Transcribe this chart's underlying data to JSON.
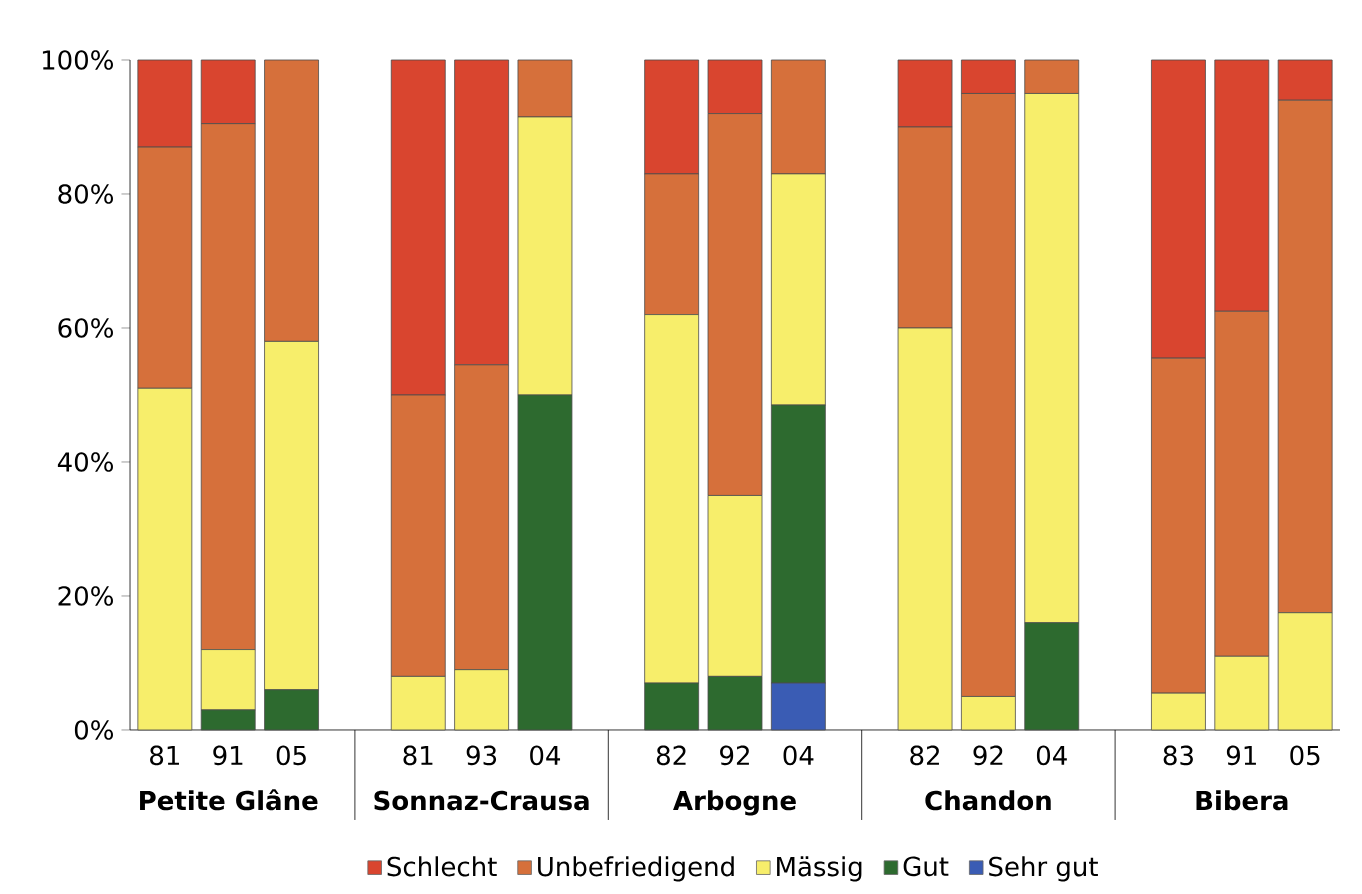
{
  "chart_data": {
    "type": "bar",
    "stacked": true,
    "categories": [
      "81",
      "91",
      "05",
      "81",
      "93",
      "04",
      "82",
      "92",
      "04",
      "82",
      "92",
      "04",
      "83",
      "91",
      "05"
    ],
    "series": [
      {
        "name": "Sehr gut",
        "color": "#3a5cb4",
        "values": [
          0,
          0,
          0,
          0,
          0,
          0,
          0,
          0,
          7,
          0,
          0,
          0,
          0,
          0,
          0
        ]
      },
      {
        "name": "Gut",
        "color": "#2d6a2f",
        "values": [
          0,
          3,
          6,
          0,
          0,
          50,
          7,
          8,
          41.5,
          0,
          0,
          16,
          0,
          0,
          0
        ]
      },
      {
        "name": "Mässig",
        "color": "#f7ee6b",
        "values": [
          51,
          9,
          52,
          8,
          9,
          41.5,
          55,
          27,
          34.5,
          60,
          5,
          79,
          5.5,
          11,
          17.5
        ]
      },
      {
        "name": "Unbefriedigend",
        "color": "#d6703b",
        "values": [
          36,
          78.5,
          42,
          42,
          45.5,
          8.5,
          21,
          57,
          17,
          30,
          90,
          5,
          50,
          51.5,
          76.5
        ]
      },
      {
        "name": "Schlecht",
        "color": "#d9452f",
        "values": [
          13,
          9.5,
          0,
          50,
          45.5,
          0,
          17,
          8,
          0,
          10,
          5,
          0,
          44.5,
          37.5,
          6
        ]
      }
    ],
    "ylim": [
      0,
      100
    ],
    "yticks": [
      {
        "value": 0,
        "label": "0%"
      },
      {
        "value": 20,
        "label": "20%"
      },
      {
        "value": 40,
        "label": "40%"
      },
      {
        "value": 60,
        "label": "60%"
      },
      {
        "value": 80,
        "label": "80%"
      },
      {
        "value": 100,
        "label": "100%"
      }
    ],
    "annotations": [
      "Petite Glâne",
      "Sonnaz-Crausa",
      "Arbogne",
      "Chandon",
      "Bibera"
    ],
    "legend": "bottom"
  }
}
